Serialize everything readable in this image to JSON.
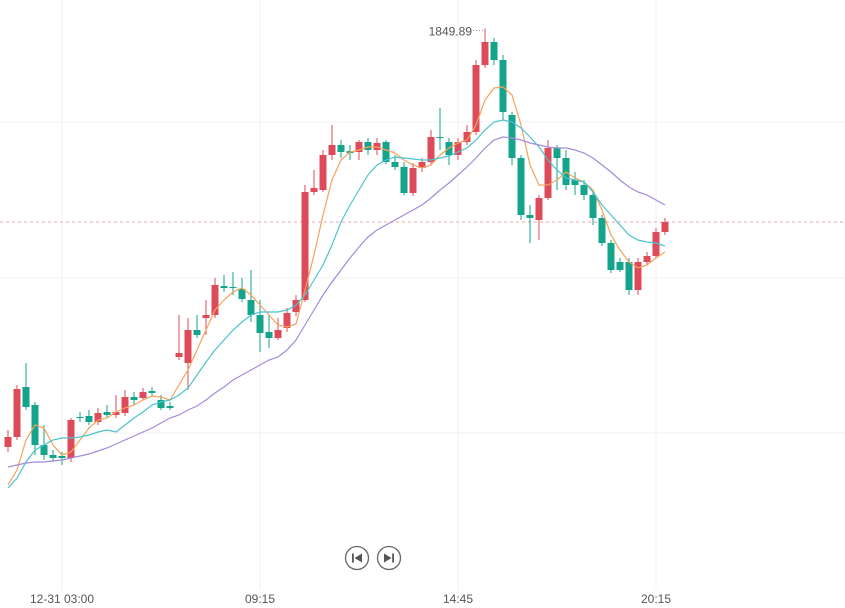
{
  "chart_data": {
    "type": "candlestick",
    "categories": [
      null,
      null,
      null,
      null,
      null,
      null,
      "12-31 03:00",
      null,
      null,
      null,
      null,
      null,
      null,
      null,
      null,
      null,
      null,
      null,
      null,
      null,
      null,
      null,
      null,
      null,
      null,
      null,
      null,
      null,
      "09:15",
      null,
      null,
      null,
      null,
      null,
      null,
      null,
      null,
      null,
      null,
      null,
      null,
      null,
      null,
      null,
      null,
      null,
      null,
      null,
      null,
      null,
      "14:45",
      null,
      null,
      null,
      null,
      null,
      null,
      null,
      null,
      null,
      null,
      null,
      null,
      null,
      null,
      null,
      null,
      null,
      null,
      null,
      null,
      null,
      "20:15",
      null
    ],
    "open": [
      1745.25,
      1747.75,
      1760.25,
      1755.75,
      1745.75,
      1743.25,
      1743,
      1742.5,
      1752.75,
      1753,
      1751.5,
      1754,
      1753.25,
      1753.75,
      1757.75,
      1757.5,
      1759.25,
      1757,
      1755.5,
      1767.75,
      1766.25,
      1774.5,
      1777.5,
      1778.25,
      1785.5,
      1785.25,
      1784.75,
      1782,
      1778.25,
      1774,
      1772.5,
      1775,
      1779,
      1782,
      1809,
      1809.5,
      1818.25,
      1820.75,
      1819.25,
      1819,
      1821.5,
      1819.5,
      1821.5,
      1816.5,
      1815.25,
      1808.75,
      1815,
      1816.5,
      1822.75,
      1821.5,
      1818.25,
      1821.5,
      1824,
      1840.75,
      1846.5,
      1842,
      1828.25,
      1817.5,
      1803.25,
      1802,
      1807.5,
      1820,
      1817.5,
      1812,
      1810.75,
      1808.25,
      1802.5,
      1796.25,
      1791.5,
      1791.5,
      1784.5,
      1791.5,
      1793,
      1799
    ],
    "high": [
      1749.5,
      1760.75,
      1766.25,
      1756.5,
      1750.75,
      1744.5,
      1744,
      1752.5,
      1754,
      1754.5,
      1755,
      1755.75,
      1758.25,
      1759.5,
      1759,
      1760,
      1760.25,
      1758.25,
      1756.5,
      1778.25,
      1777.5,
      1778.25,
      1782,
      1787.5,
      1788.25,
      1789,
      1787.5,
      1789.5,
      1782,
      1778.25,
      1777.5,
      1780,
      1783.25,
      1810.75,
      1814.5,
      1819.5,
      1825.75,
      1822,
      1820.75,
      1822,
      1822.5,
      1822.5,
      1822,
      1818.25,
      1816.5,
      1816.25,
      1817.5,
      1824.5,
      1830,
      1822.5,
      1822.5,
      1825.75,
      1842,
      1849.89,
      1847.5,
      1843.25,
      1829,
      1818.25,
      1805.75,
      1808.25,
      1822,
      1820.75,
      1819.5,
      1814,
      1812,
      1809.5,
      1803.25,
      1797,
      1792.5,
      1792.5,
      1792.5,
      1794,
      1800,
      1802.5
    ],
    "low": [
      1744,
      1747,
      1754.5,
      1743.25,
      1742,
      1741.5,
      1740.75,
      1741.5,
      1751.5,
      1750.75,
      1750.75,
      1752.5,
      1752.5,
      1753,
      1755.75,
      1757,
      1758,
      1754.5,
      1754.5,
      1767,
      1759.5,
      1772.5,
      1773.25,
      1777.5,
      1784,
      1783.25,
      1781.5,
      1776.5,
      1769,
      1770,
      1772,
      1774,
      1778,
      1781.5,
      1808.25,
      1809,
      1817,
      1817.5,
      1817,
      1817,
      1818.25,
      1818.25,
      1816,
      1814.5,
      1808.25,
      1808,
      1814,
      1815.75,
      1819.5,
      1815.75,
      1817,
      1820.75,
      1823.25,
      1840,
      1840.75,
      1827,
      1815.75,
      1802,
      1796.25,
      1797,
      1807,
      1809.5,
      1809.5,
      1808.25,
      1807,
      1800.75,
      1795.5,
      1788.75,
      1789,
      1783.25,
      1783.25,
      1790.75,
      1792.5,
      1798.25
    ],
    "close": [
      1747.75,
      1759.75,
      1755.25,
      1745.75,
      1743.25,
      1742.5,
      1742.5,
      1752,
      1752.5,
      1751.5,
      1753.75,
      1753.25,
      1754,
      1757.75,
      1757,
      1759,
      1758.75,
      1755,
      1755,
      1768.75,
      1774.5,
      1773.25,
      1778.25,
      1785.75,
      1785,
      1785,
      1782.25,
      1778.25,
      1773.75,
      1772.5,
      1774.5,
      1778.75,
      1782,
      1809,
      1810,
      1818.25,
      1820.75,
      1819,
      1818.75,
      1821.5,
      1819.5,
      1821.25,
      1816.5,
      1815.25,
      1808.75,
      1815,
      1816.5,
      1822.75,
      1822.5,
      1818.25,
      1821.5,
      1824,
      1840.75,
      1846.5,
      1842,
      1829,
      1817.5,
      1803.25,
      1802.5,
      1807.5,
      1820,
      1817.5,
      1810.75,
      1810.75,
      1808.25,
      1802.5,
      1796.25,
      1789.5,
      1789.5,
      1784.5,
      1791.5,
      1793,
      1799,
      1801.5
    ],
    "up_color": "#dd4b5a",
    "down_color": "#14a38b",
    "series": [
      {
        "color": "#f5a35c",
        "values": [
          1735.75,
          1739.5,
          1747,
          1750.75,
          1750,
          1745.75,
          1743.25,
          1744,
          1747,
          1750,
          1752,
          1752.5,
          1754,
          1755,
          1755.75,
          1757,
          1758,
          1757.75,
          1757,
          1760.75,
          1764.5,
          1769.5,
          1774.5,
          1779.5,
          1782,
          1784,
          1785,
          1783.25,
          1780.75,
          1778.25,
          1775.75,
          1775.25,
          1776,
          1784.5,
          1793.25,
          1803.25,
          1812,
          1817,
          1819,
          1819.5,
          1820.25,
          1820.25,
          1819.5,
          1818.75,
          1817,
          1815.75,
          1815,
          1815.75,
          1818.25,
          1820,
          1821.25,
          1822,
          1825.75,
          1832,
          1835,
          1835.25,
          1833.25,
          1825.75,
          1815.75,
          1810.75,
          1810.75,
          1812,
          1814,
          1812.5,
          1811.5,
          1809.5,
          1804.5,
          1798.25,
          1794.5,
          1791.5,
          1790,
          1790.75,
          1792.5,
          1794
        ]
      },
      {
        "color": "#4cc3cf",
        "values": [
          1735,
          1737.5,
          1741.5,
          1744.5,
          1745.75,
          1747,
          1747.5,
          1747.5,
          1747.75,
          1748.25,
          1749,
          1749.5,
          1749,
          1750.75,
          1752.5,
          1754,
          1755.75,
          1756.5,
          1757,
          1758.25,
          1760,
          1763.25,
          1766.5,
          1769.5,
          1772,
          1774.5,
          1776.5,
          1778.25,
          1779,
          1779,
          1779,
          1779.5,
          1780.75,
          1783.25,
          1787,
          1790.75,
          1795.75,
          1801.5,
          1805.75,
          1809.5,
          1813.25,
          1815.75,
          1817,
          1817.75,
          1817.5,
          1817.25,
          1817,
          1817,
          1817.5,
          1818,
          1819,
          1820,
          1822,
          1824.5,
          1826.5,
          1827,
          1826.5,
          1825,
          1822.75,
          1820.25,
          1817,
          1814.5,
          1812.5,
          1812,
          1811.5,
          1809,
          1805.75,
          1803.25,
          1800.75,
          1798.25,
          1797,
          1796.5,
          1796.25,
          1795.5
        ]
      },
      {
        "color": "#a58bd8",
        "values": [
          1740.25,
          1740.75,
          1741.25,
          1741.5,
          1741.5,
          1741.75,
          1742,
          1742.5,
          1743,
          1743.5,
          1744.25,
          1745,
          1746,
          1747,
          1748,
          1749,
          1750,
          1751.25,
          1752.5,
          1753.25,
          1754.5,
          1755.5,
          1757,
          1758.75,
          1760.25,
          1762,
          1763.25,
          1764.5,
          1765.75,
          1767,
          1767.75,
          1769.5,
          1772,
          1775.75,
          1779.5,
          1783.25,
          1786.5,
          1789.5,
          1792.5,
          1795.25,
          1797.75,
          1799.5,
          1800.75,
          1802,
          1803.25,
          1804.5,
          1805.75,
          1807.5,
          1809.5,
          1811.25,
          1813.25,
          1815.25,
          1817.5,
          1820,
          1822,
          1822.75,
          1822.5,
          1822,
          1821.25,
          1820.75,
          1820.25,
          1820,
          1820,
          1819.5,
          1818.75,
          1817.5,
          1815.75,
          1814,
          1812,
          1810.25,
          1809,
          1808.25,
          1807,
          1805.75
        ]
      }
    ],
    "ylim": [
      1705,
      1857
    ],
    "yticks": [
      1826.5,
      1787.5,
      1748.75
    ],
    "ytick_labels": false,
    "grid": true,
    "last_price_line": true
  }
}
